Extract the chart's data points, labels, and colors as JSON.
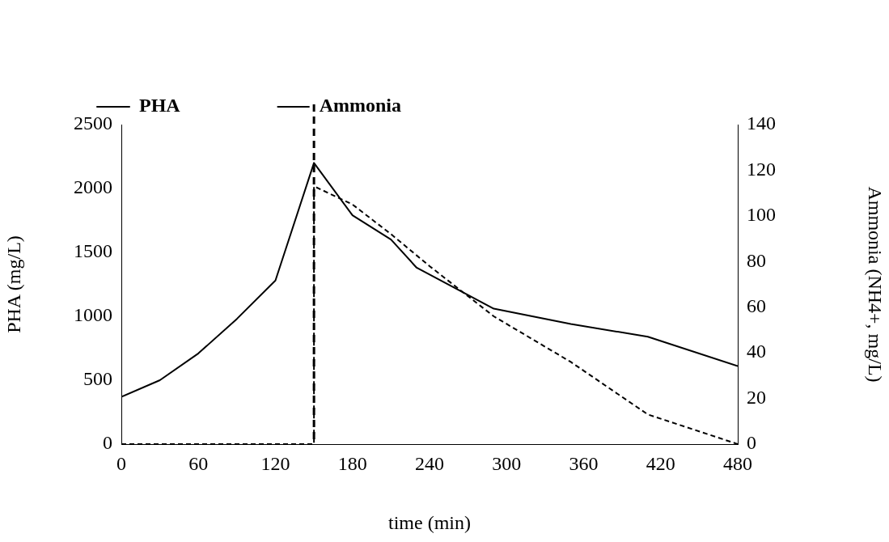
{
  "chart_data": {
    "type": "line",
    "xlabel": "time (min)",
    "ylabel": "PHA (mg/L)",
    "y2label": "Ammonia (NH4+, mg/L)",
    "xlim": [
      0,
      480
    ],
    "xticks": [
      0,
      60,
      120,
      180,
      240,
      300,
      360,
      420,
      480
    ],
    "ylim": [
      0,
      2500
    ],
    "yticks": [
      0,
      500,
      1000,
      1500,
      2000,
      2500
    ],
    "y2lim": [
      0,
      140
    ],
    "y2ticks": [
      0,
      20,
      40,
      60,
      80,
      100,
      120,
      140
    ],
    "series": [
      {
        "name": "PHA",
        "color": "#000000",
        "line_style": "solid",
        "x": [
          0,
          30,
          60,
          90,
          120,
          150,
          180,
          210,
          230,
          290,
          350,
          410,
          480
        ],
        "values": [
          370,
          500,
          710,
          980,
          1280,
          2200,
          1790,
          1600,
          1380,
          1060,
          940,
          840,
          610
        ]
      },
      {
        "name": "Ammonia",
        "color": "#000000",
        "line_style": "dashed",
        "axis": "y2",
        "x": [
          0,
          150,
          150,
          180,
          210,
          240,
          290,
          350,
          410,
          480
        ],
        "values": [
          0,
          0,
          113,
          105,
          92,
          78,
          56,
          36,
          13,
          0
        ]
      }
    ],
    "ref_lines": [
      {
        "axis": "x",
        "value": 150,
        "color": "#000000",
        "line_style": "dashed"
      }
    ],
    "grid": false,
    "legend": "top",
    "marker": "none"
  }
}
